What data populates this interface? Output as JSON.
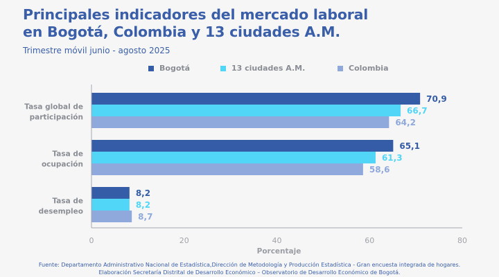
{
  "header": {
    "title_line1": "Principales indicadores del mercado laboral",
    "title_line2": "en Bogotá, Colombia y 13 ciudades A.M.",
    "subtitle": "Trimestre móvil junio - agosto 2025"
  },
  "footer": {
    "line1": "Fuente: Departamento Administrativo Nacional de Estadística,Dirección de Metodología y Producción Estadística - Gran encuesta integrada de hogares.",
    "line2": "Elaboración Secretaría Distrital de Desarrollo Económico – Observatorio de Desarrollo Económico de Bogotá."
  },
  "colors": {
    "bogota": "#355ca6",
    "ciudades": "#52d6f8",
    "colombia": "#8fa9dc",
    "axis": "#a6a8ad",
    "category_label": "#8a8d94"
  },
  "chart_data": {
    "type": "bar",
    "orientation": "horizontal",
    "title": "Principales indicadores del mercado laboral en Bogotá, Colombia y 13 ciudades A.M.",
    "subtitle": "Trimestre móvil junio - agosto 2025",
    "xlabel": "Porcentaje",
    "ylabel": "",
    "xlim": [
      0,
      80
    ],
    "xticks": [
      0,
      20,
      40,
      60,
      80
    ],
    "grid": false,
    "legend_position": "top",
    "categories": [
      [
        "Tasa global de",
        "participación"
      ],
      [
        "Tasa de",
        "ocupación"
      ],
      [
        "Tasa de",
        "desempleo"
      ]
    ],
    "series": [
      {
        "name": "Bogotá",
        "color": "#355ca6",
        "values": [
          70.9,
          65.1,
          8.2
        ],
        "labels": [
          "70,9",
          "65,1",
          "8,2"
        ]
      },
      {
        "name": "13 ciudades A.M.",
        "color": "#52d6f8",
        "values": [
          66.7,
          61.3,
          8.2
        ],
        "labels": [
          "66,7",
          "61,3",
          "8,2"
        ]
      },
      {
        "name": "Colombia",
        "color": "#8fa9dc",
        "values": [
          64.2,
          58.6,
          8.7
        ],
        "labels": [
          "64,2",
          "58,6",
          "8,7"
        ]
      }
    ]
  }
}
